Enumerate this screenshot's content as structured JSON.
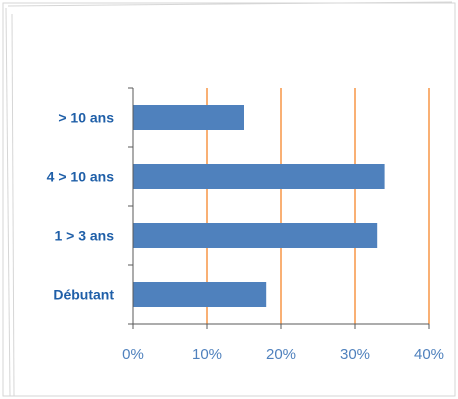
{
  "chart_data": {
    "type": "bar",
    "orientation": "horizontal",
    "categories": [
      "> 10 ans",
      "4 > 10 ans",
      "1 > 3 ans",
      "Débutant"
    ],
    "values": [
      15,
      34,
      33,
      18
    ],
    "value_unit": "%",
    "xlim": [
      0,
      40
    ],
    "x_ticks": [
      0,
      10,
      20,
      30,
      40
    ],
    "x_tick_labels": [
      "0%",
      "10%",
      "20%",
      "30%",
      "40%"
    ],
    "title": "",
    "xlabel": "",
    "ylabel": "",
    "grid": "vertical",
    "legend": "none",
    "colors": {
      "bar": "#4f81bd",
      "gridline": "#f79646",
      "axis": "#595959",
      "category_text": "#1f5fa8",
      "tick_text": "#4f81bd",
      "frame": "#d0d0d0"
    }
  }
}
